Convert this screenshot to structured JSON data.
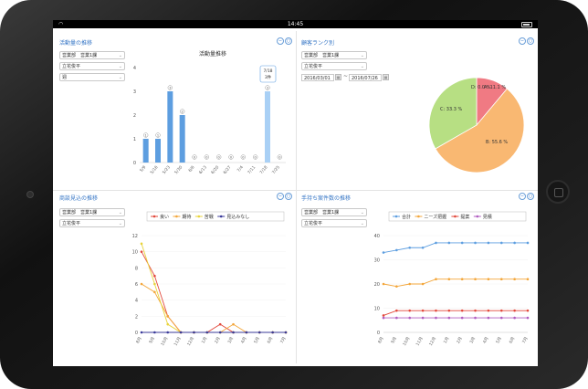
{
  "status": {
    "time": "14:45"
  },
  "panels": {
    "activity": {
      "title": "活動量の推移",
      "filters": {
        "dept": "営業部　営業1課",
        "person": "立花俊平",
        "period": "週"
      },
      "chart_data": {
        "type": "bar",
        "title": "活動量推移",
        "categories": [
          "5/9",
          "5/16",
          "5/23",
          "5/30",
          "6/6",
          "6/13",
          "6/20",
          "6/27",
          "7/4",
          "7/11",
          "7/18",
          "7/25"
        ],
        "values": [
          1,
          1,
          3,
          2,
          0,
          0,
          0,
          0,
          0,
          0,
          3,
          0
        ],
        "ylim": [
          0,
          4
        ],
        "yticks": [
          "0",
          "1",
          "2",
          "3",
          "4"
        ],
        "tooltip": {
          "line1": "7/18",
          "line2": "3件"
        }
      }
    },
    "rank": {
      "title": "顧客ランク別",
      "filters": {
        "dept": "営業部　営業1課",
        "person": "立花俊平",
        "date_from": "2016/03/01",
        "date_to": "2016/07/26",
        "separator": "~"
      },
      "chart_data": {
        "type": "pie",
        "slices": [
          {
            "label": "A: 11.1 %",
            "value": 11.1,
            "color": "#f07a83"
          },
          {
            "label": "B: 55.6 %",
            "value": 55.6,
            "color": "#f9b872"
          },
          {
            "label": "C: 33.3 %",
            "value": 33.3,
            "color": "#b7df83"
          },
          {
            "label": "D: 0.0 %",
            "value": 0.0,
            "color": "#7fb8e6"
          }
        ]
      }
    },
    "prospects": {
      "title": "商談見込の推移",
      "filters": {
        "dept": "営業部　営業1課",
        "person": "立花俊平"
      },
      "chart_data": {
        "type": "line",
        "categories": [
          "8月",
          "9月",
          "10月",
          "11月",
          "12月",
          "1月",
          "2月",
          "3月",
          "4月",
          "5月",
          "6月",
          "7月"
        ],
        "series": [
          {
            "name": "良い",
            "color": "#e2483b",
            "values": [
              10,
              7,
              2,
              0,
              0,
              0,
              1,
              0,
              0,
              0,
              0,
              0
            ]
          },
          {
            "name": "期待",
            "color": "#f3a63a",
            "values": [
              6,
              5,
              2,
              0,
              0,
              0,
              0,
              1,
              0,
              0,
              0,
              0
            ]
          },
          {
            "name": "苦戦",
            "color": "#e8d33a",
            "values": [
              11,
              6,
              1,
              0,
              0,
              0,
              0,
              0,
              0,
              0,
              0,
              0
            ]
          },
          {
            "name": "見込みなし",
            "color": "#3b3b9a",
            "values": [
              0,
              0,
              0,
              0,
              0,
              0,
              0,
              0,
              0,
              0,
              0,
              0
            ]
          }
        ],
        "ylim": [
          0,
          12
        ],
        "yticks": [
          "0",
          "2",
          "4",
          "6",
          "8",
          "10",
          "12"
        ]
      }
    },
    "holdings": {
      "title": "手持ち案件数の推移",
      "filters": {
        "dept": "営業部　営業1課",
        "person": "立花俊平"
      },
      "chart_data": {
        "type": "line",
        "categories": [
          "8月",
          "9月",
          "10月",
          "11月",
          "12月",
          "1月",
          "2月",
          "3月",
          "4月",
          "5月",
          "6月",
          "7月"
        ],
        "series": [
          {
            "name": "合計",
            "color": "#5d9ee0",
            "values": [
              33,
              34,
              35,
              35,
              37,
              37,
              37,
              37,
              37,
              37,
              37,
              37
            ]
          },
          {
            "name": "ニーズ把握",
            "color": "#f3a63a",
            "values": [
              20,
              19,
              20,
              20,
              22,
              22,
              22,
              22,
              22,
              22,
              22,
              22
            ]
          },
          {
            "name": "提案",
            "color": "#e2483b",
            "values": [
              7,
              9,
              9,
              9,
              9,
              9,
              9,
              9,
              9,
              9,
              9,
              9
            ]
          },
          {
            "name": "見積",
            "color": "#b05cc0",
            "values": [
              6,
              6,
              6,
              6,
              6,
              6,
              6,
              6,
              6,
              6,
              6,
              6
            ]
          }
        ],
        "ylim": [
          0,
          40
        ],
        "yticks": [
          "0",
          "10",
          "20",
          "30",
          "40"
        ]
      }
    }
  }
}
